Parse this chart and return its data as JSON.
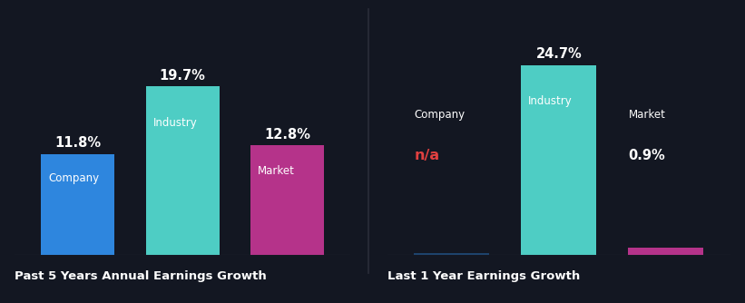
{
  "background_color": "#131722",
  "divider_color": "#2a2d3a",
  "chart1": {
    "title": "Past 5 Years Annual Earnings Growth",
    "bars": [
      {
        "label": "Company",
        "value": 11.8,
        "color": "#2e86de",
        "na": false
      },
      {
        "label": "Industry",
        "value": 19.7,
        "color": "#4ecdc4",
        "na": false
      },
      {
        "label": "Market",
        "value": 12.8,
        "color": "#b5338a",
        "na": false
      }
    ],
    "ylim": 27
  },
  "chart2": {
    "title": "Last 1 Year Earnings Growth",
    "bars": [
      {
        "label": "Company",
        "value": 0.0,
        "color": "#2e86de",
        "na": true,
        "na_color": "#e04040"
      },
      {
        "label": "Industry",
        "value": 24.7,
        "color": "#4ecdc4",
        "na": false
      },
      {
        "label": "Market",
        "value": 0.9,
        "color": "#b5338a",
        "na": false
      }
    ],
    "ylim": 30
  },
  "value_fontsize": 10.5,
  "label_fontsize": 8.5,
  "title_fontsize": 9.5,
  "text_color": "#ffffff",
  "na_text_color": "#e04040",
  "bar_width": 0.7,
  "bar_gap": 1.0
}
